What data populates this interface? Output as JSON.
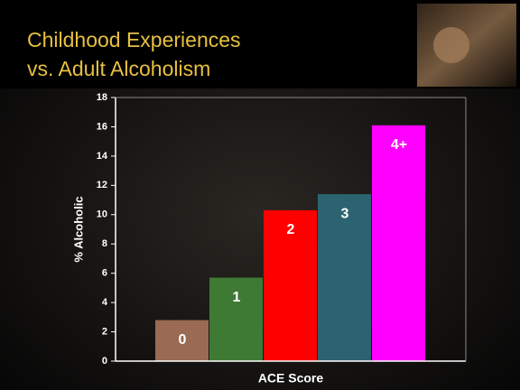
{
  "chart_data": {
    "type": "bar",
    "title": [
      "Childhood Experiences",
      "vs. Adult Alcoholism"
    ],
    "xlabel": "ACE Score",
    "ylabel": "% Alcoholic",
    "categories": [
      "0",
      "1",
      "2",
      "3",
      "4+"
    ],
    "values": [
      2.8,
      5.7,
      10.3,
      11.4,
      16.1
    ],
    "colors": [
      "#9a6a52",
      "#3f7a35",
      "#ff0000",
      "#2b6470",
      "#ff00ff"
    ],
    "ylim": [
      0,
      18
    ],
    "yticks": [
      0,
      2,
      4,
      6,
      8,
      10,
      12,
      14,
      16,
      18
    ]
  }
}
